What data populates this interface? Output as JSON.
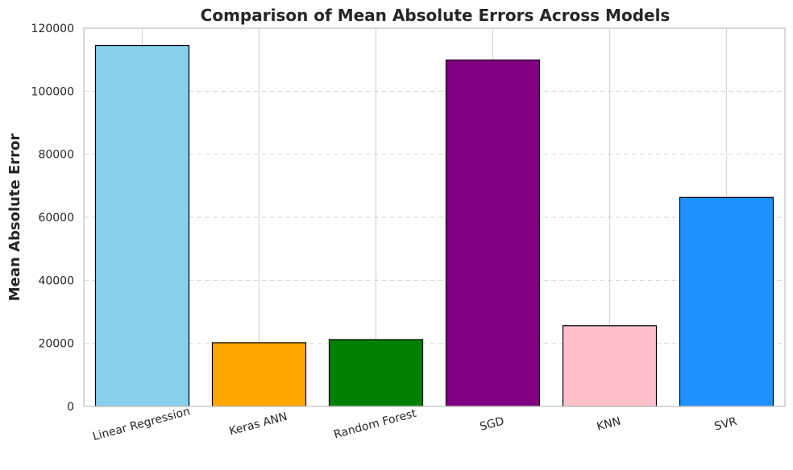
{
  "chart_data": {
    "type": "bar",
    "title": "Comparison of Mean Absolute Errors Across Models",
    "xlabel": "",
    "ylabel": "Mean Absolute Error",
    "categories": [
      "Linear Regression",
      "Keras ANN",
      "Random Forest",
      "SGD",
      "KNN",
      "SVR"
    ],
    "values": [
      114500,
      20200,
      21200,
      109900,
      25600,
      66300
    ],
    "colors": [
      "#87CEEB",
      "#FFA500",
      "#008000",
      "#800080",
      "#FFC0CB",
      "#1E90FF"
    ],
    "ylim": [
      0,
      120000
    ],
    "yticks": [
      0,
      20000,
      40000,
      60000,
      80000,
      100000,
      120000
    ],
    "ytick_labels": [
      "0",
      "20000",
      "40000",
      "60000",
      "80000",
      "100000",
      "120000"
    ],
    "grid": true,
    "xtick_rotation_deg": 15
  }
}
